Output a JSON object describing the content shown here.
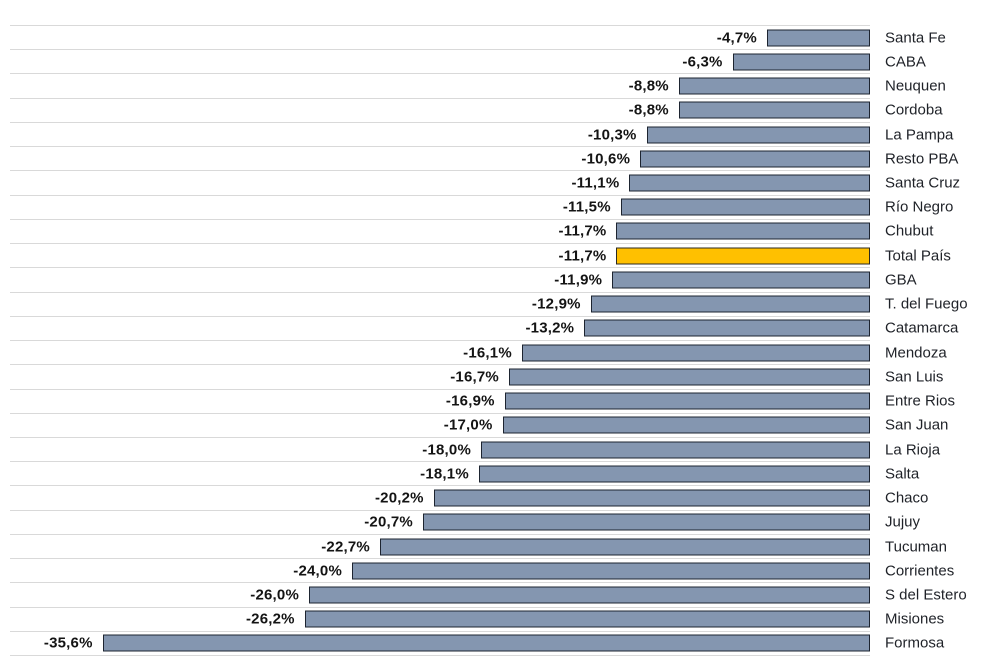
{
  "chart_data": {
    "type": "bar",
    "orientation": "horizontal",
    "title": "",
    "xlabel": "",
    "ylabel": "",
    "xlim": [
      -40,
      0
    ],
    "grid": "row-separator horizontal gridlines, light gray",
    "legend": "none",
    "value_label_position": "outside-end (left of bar), bold, comma decimal",
    "category_label_position": "right of plot area",
    "categories": [
      "Santa Fe",
      "CABA",
      "Neuquen",
      "Cordoba",
      "La Pampa",
      "Resto PBA",
      "Santa Cruz",
      "Río Negro",
      "Chubut",
      "Total País",
      "GBA",
      "T. del Fuego",
      "Catamarca",
      "Mendoza",
      "San Luis",
      "Entre Rios",
      "San Juan",
      "La Rioja",
      "Salta",
      "Chaco",
      "Jujuy",
      "Tucuman",
      "Corrientes",
      "S del Estero",
      "Misiones",
      "Formosa"
    ],
    "values": [
      -4.7,
      -6.3,
      -8.8,
      -8.8,
      -10.3,
      -10.6,
      -11.1,
      -11.5,
      -11.7,
      -11.7,
      -11.9,
      -12.9,
      -13.2,
      -16.1,
      -16.7,
      -16.9,
      -17.0,
      -18.0,
      -18.1,
      -20.2,
      -20.7,
      -22.7,
      -24.0,
      -26.0,
      -26.2,
      -35.6
    ],
    "value_labels": [
      "-4,7%",
      "-6,3%",
      "-8,8%",
      "-8,8%",
      "-10,3%",
      "-10,6%",
      "-11,1%",
      "-11,5%",
      "-11,7%",
      "-11,7%",
      "-11,9%",
      "-12,9%",
      "-13,2%",
      "-16,1%",
      "-16,7%",
      "-16,9%",
      "-17,0%",
      "-18,0%",
      "-18,1%",
      "-20,2%",
      "-20,7%",
      "-22,7%",
      "-24,0%",
      "-26,0%",
      "-26,2%",
      "-35,6%"
    ],
    "highlight_index": 9,
    "colors": {
      "bar_fill": "#8496B0",
      "bar_border": "#1D2430",
      "highlight_fill": "#FFC000",
      "highlight_border": "#2B2A22",
      "gridline": "#D9D9D9",
      "value_text": "#141414",
      "category_text": "#1F2228",
      "background": "#FFFFFF"
    }
  }
}
